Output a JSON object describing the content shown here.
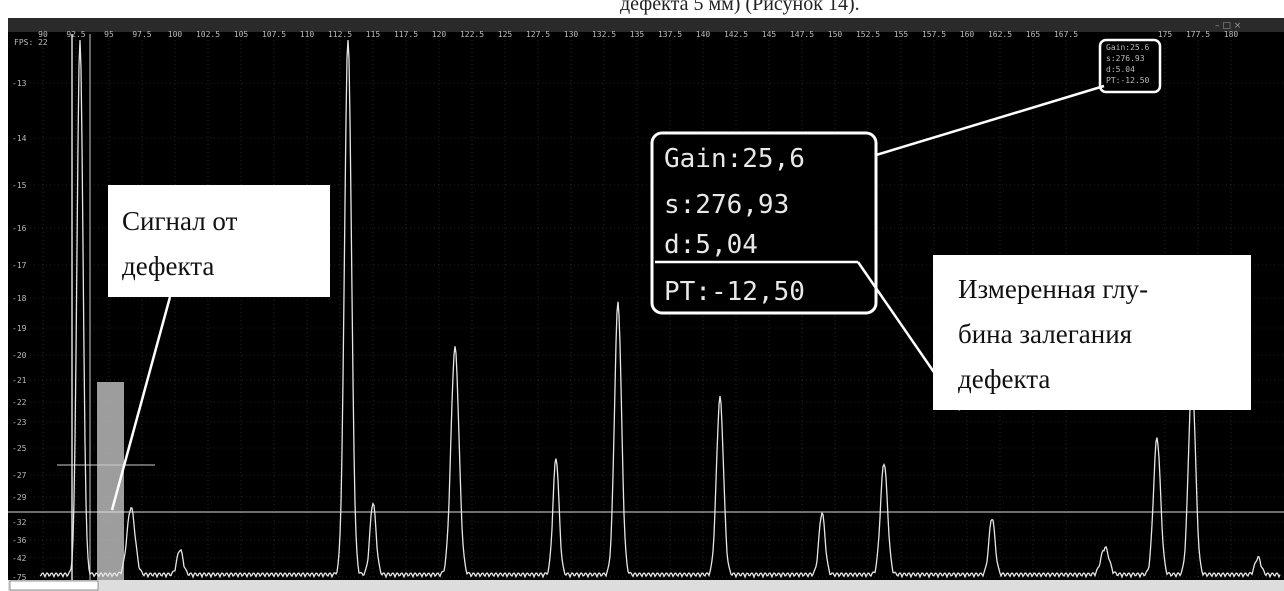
{
  "document_fragment": "дефекта 5 мм) (Рисунок 14).",
  "window": {
    "fps": "FPS: 22"
  },
  "x_axis_labels": [
    "90",
    "92.5",
    "95",
    "97.5",
    "100",
    "102.5",
    "105",
    "107.5",
    "110",
    "112.5",
    "115",
    "117.5",
    "120",
    "122.5",
    "125",
    "127.5",
    "130",
    "132.5",
    "135",
    "137.5",
    "140",
    "142.5",
    "145",
    "147.5",
    "150",
    "152.5",
    "155",
    "157.5",
    "160",
    "162.5",
    "165",
    "167.5",
    "175",
    "177.5",
    "180"
  ],
  "y_axis_labels": [
    "-13",
    "-14",
    "-15",
    "-16",
    "-17",
    "-18",
    "-19",
    "-20",
    "-21",
    "-22",
    "-23",
    "-25",
    "-27",
    "-29",
    "-32",
    "-36",
    "-42",
    "-75"
  ],
  "small_readout": [
    "Gain:25.6",
    "s:276.93",
    "d:5.04",
    "PT:-12.50"
  ],
  "readout": {
    "gain": "Gain:25,6",
    "s": "s:276,93",
    "d": "d:5,04",
    "pt": "PT:-12,50"
  },
  "callouts": {
    "defect_signal": [
      "Сигнал от",
      "дефекта"
    ],
    "depth": [
      "Измеренная глу-",
      "бина залегания",
      "дефекта"
    ]
  }
}
